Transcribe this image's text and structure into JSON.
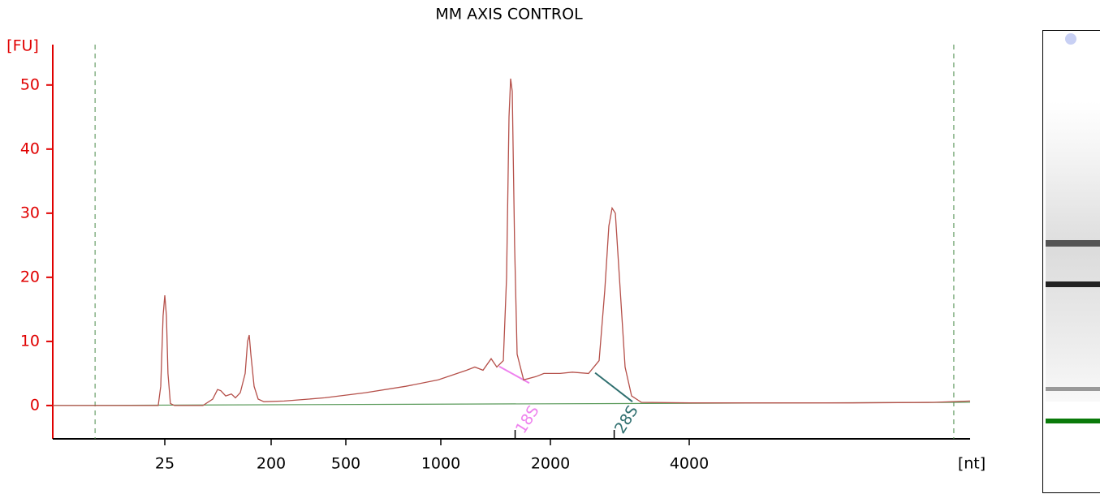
{
  "chart_data": {
    "type": "line",
    "title": "MM AXIS CONTROL",
    "y_label": "[FU]",
    "x_label": "[nt]",
    "x": [
      2.8,
      22.0,
      23.1,
      24.2,
      25,
      25.8,
      26.6,
      27.9,
      30.2,
      52.7,
      63.8,
      70.2,
      74.8,
      82.2,
      91.9,
      99.5,
      109.4,
      120.4,
      126.2,
      130.3,
      134.5,
      143.3,
      155.2,
      173.5,
      234.6,
      385.9,
      576.6,
      775,
      982,
      1178,
      1240,
      1306,
      1375,
      1425,
      1485,
      1516,
      1539,
      1555,
      1571,
      1595,
      1620,
      1688,
      1824,
      1920,
      2099,
      2231,
      2420,
      2551,
      2624,
      2678,
      2722,
      2766,
      2823,
      2904,
      3000,
      3150,
      4016,
      6025,
      9035,
      13550,
      16260
    ],
    "series": [
      {
        "color": "#b5504a",
        "values": [
          0,
          0,
          3,
          14,
          17.2,
          14,
          5,
          0.3,
          0,
          0,
          1,
          2.5,
          2.3,
          1.5,
          1.8,
          1.2,
          2,
          5,
          10,
          11,
          8,
          3,
          1,
          0.6,
          0.7,
          1.2,
          2,
          3,
          4,
          5.5,
          6,
          5.5,
          7.3,
          6,
          7,
          20,
          45,
          51,
          49,
          25,
          8,
          4,
          4.5,
          5,
          5,
          5.2,
          5,
          7,
          18,
          28,
          30.8,
          30,
          20,
          6,
          1.5,
          0.5,
          0.4,
          0.4,
          0.4,
          0.5,
          0.7
        ]
      }
    ],
    "baseline": {
      "color": "#5a9a5a",
      "x": [
        2.8,
        16260
      ],
      "values": [
        0,
        0.5
      ]
    },
    "markers": {
      "color": "#4a8a4a",
      "x": [
        6.4,
        14990
      ]
    },
    "peaks": [
      {
        "name": "18S",
        "color": "#ee82ee",
        "x": 1600,
        "start_x": 1447,
        "start_y": 6.1,
        "end_x": 1750,
        "end_y": 3.5
      },
      {
        "name": "28S",
        "color": "#2f6f6f",
        "x": 2750,
        "start_x": 2500,
        "start_y": 5.1,
        "end_x": 3012,
        "end_y": 0.6
      }
    ],
    "xlim": [
      2.8,
      16260
    ],
    "xticks": [
      25,
      200,
      500,
      1000,
      2000,
      4000
    ],
    "ylim": [
      -5.2,
      56.3
    ],
    "yticks": [
      0,
      10,
      20,
      30,
      40,
      50
    ],
    "y_axis_color": "#e00000"
  }
}
